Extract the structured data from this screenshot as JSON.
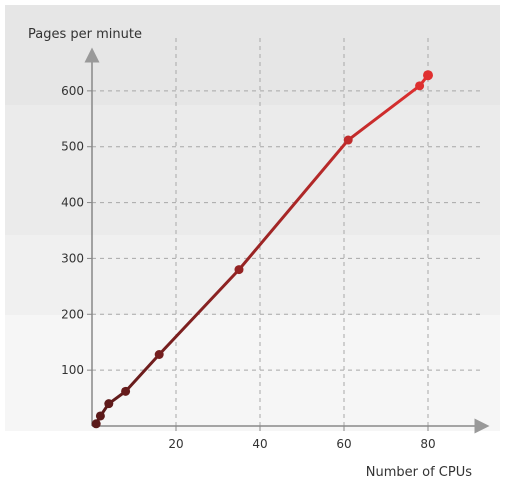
{
  "chart_data": {
    "type": "line",
    "title": "",
    "xlabel": "Number of CPUs",
    "ylabel": "Pages per minute",
    "xlim": [
      0,
      90
    ],
    "ylim": [
      0,
      700
    ],
    "x_ticks": [
      20,
      40,
      60,
      80
    ],
    "y_ticks": [
      100,
      200,
      300,
      400,
      500,
      600
    ],
    "grid": true,
    "legend": "none",
    "series": [
      {
        "color_start": "#5a1a1a",
        "color_end": "#e03030",
        "points": [
          {
            "x": 1,
            "y": 4
          },
          {
            "x": 2,
            "y": 18
          },
          {
            "x": 4,
            "y": 40
          },
          {
            "x": 8,
            "y": 62
          },
          {
            "x": 16,
            "y": 128
          },
          {
            "x": 35,
            "y": 280
          },
          {
            "x": 61,
            "y": 512
          },
          {
            "x": 78,
            "y": 609
          },
          {
            "x": 80,
            "y": 628
          }
        ]
      }
    ],
    "background_bands": [
      "#e6e6e6",
      "#ebebeb",
      "#f0f0f0",
      "#f6f6f6"
    ]
  }
}
